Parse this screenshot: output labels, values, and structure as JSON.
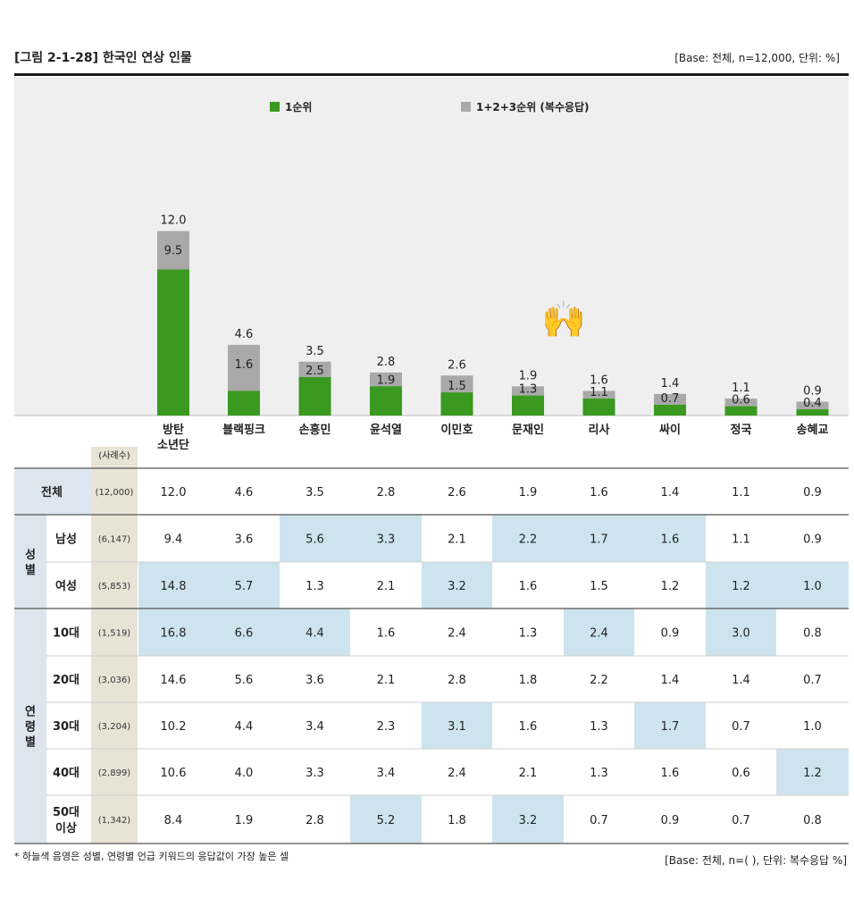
{
  "header": {
    "title": "[그림 2-1-28] 한국인 연상 인물",
    "base": "[Base: 전체, n=12,000, 단위: %]"
  },
  "colors": {
    "first": "#3a9a1f",
    "multi": "#a9a9aa",
    "highlight": "#cde4ee",
    "sample_col": "#e9e3d6",
    "row_header": "#dde6ee"
  },
  "chart_data": {
    "type": "bar",
    "categories": [
      "방탄\n소년단",
      "블랙핑크",
      "손흥민",
      "윤석열",
      "이민호",
      "문재인",
      "리사",
      "싸이",
      "정국",
      "송혜교"
    ],
    "series": [
      {
        "name": "1순위",
        "values": [
          9.5,
          1.6,
          2.5,
          1.9,
          1.5,
          1.3,
          1.1,
          0.7,
          0.6,
          0.4
        ]
      },
      {
        "name": "1+2+3순위 (복수응답)",
        "values": [
          12.0,
          4.6,
          3.5,
          2.8,
          2.6,
          1.9,
          1.6,
          1.4,
          1.1,
          0.9
        ]
      }
    ],
    "value_labels_first": [
      "9.5",
      "1.6",
      "2.5",
      "1.9",
      "1.5",
      "1.3",
      "1.1",
      "0.7",
      "0.6",
      "0.4"
    ],
    "value_labels_total": [
      "12.0",
      "4.6",
      "3.5",
      "2.8",
      "2.6",
      "1.9",
      "1.6",
      "1.4",
      "1.1",
      "0.9"
    ],
    "ylim": [
      0,
      15
    ],
    "legend_position": "top"
  },
  "table": {
    "sample_header": "(사례수)",
    "group_labels": {
      "gender": "성별",
      "age": "연령별"
    },
    "rows": [
      {
        "label": "전체",
        "n": "(12,000)",
        "group": "all",
        "values": [
          "12.0",
          "4.6",
          "3.5",
          "2.8",
          "2.6",
          "1.9",
          "1.6",
          "1.4",
          "1.1",
          "0.9"
        ],
        "hl": []
      },
      {
        "label": "남성",
        "n": "(6,147)",
        "group": "gender",
        "values": [
          "9.4",
          "3.6",
          "5.6",
          "3.3",
          "2.1",
          "2.2",
          "1.7",
          "1.6",
          "1.1",
          "0.9"
        ],
        "hl": [
          2,
          3,
          5,
          6,
          7
        ]
      },
      {
        "label": "여성",
        "n": "(5,853)",
        "group": "gender",
        "values": [
          "14.8",
          "5.7",
          "1.3",
          "2.1",
          "3.2",
          "1.6",
          "1.5",
          "1.2",
          "1.2",
          "1.0"
        ],
        "hl": [
          0,
          1,
          4,
          8,
          9
        ]
      },
      {
        "label": "10대",
        "n": "(1,519)",
        "group": "age",
        "values": [
          "16.8",
          "6.6",
          "4.4",
          "1.6",
          "2.4",
          "1.3",
          "2.4",
          "0.9",
          "3.0",
          "0.8"
        ],
        "hl": [
          0,
          1,
          2,
          6,
          8
        ]
      },
      {
        "label": "20대",
        "n": "(3,036)",
        "group": "age",
        "values": [
          "14.6",
          "5.6",
          "3.6",
          "2.1",
          "2.8",
          "1.8",
          "2.2",
          "1.4",
          "1.4",
          "0.7"
        ],
        "hl": []
      },
      {
        "label": "30대",
        "n": "(3,204)",
        "group": "age",
        "values": [
          "10.2",
          "4.4",
          "3.4",
          "2.3",
          "3.1",
          "1.6",
          "1.3",
          "1.7",
          "0.7",
          "1.0"
        ],
        "hl": [
          4,
          7
        ]
      },
      {
        "label": "40대",
        "n": "(2,899)",
        "group": "age",
        "values": [
          "10.6",
          "4.0",
          "3.3",
          "3.4",
          "2.4",
          "2.1",
          "1.3",
          "1.6",
          "0.6",
          "1.2"
        ],
        "hl": [
          9
        ]
      },
      {
        "label": "50대\n이상",
        "n": "(1,342)",
        "group": "age",
        "values": [
          "8.4",
          "1.9",
          "2.8",
          "5.2",
          "1.8",
          "3.2",
          "0.7",
          "0.9",
          "0.7",
          "0.8"
        ],
        "hl": [
          3,
          5
        ]
      }
    ]
  },
  "footer": {
    "note": "* 하늘색 음영은 성별, 연령별 언급 키워드의 응답값이 가장 높은 셀",
    "base": "[Base: 전체, n=( ), 단위: 복수응답 %]"
  },
  "decoration": {
    "emoji": "🙌"
  }
}
